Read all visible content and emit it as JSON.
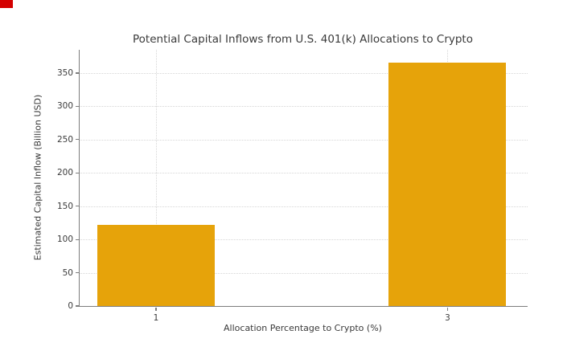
{
  "chart_data": {
    "type": "bar",
    "title": "Potential Capital Inflows from U.S. 401(k) Allocations to Crypto",
    "xlabel": "Allocation Percentage to Crypto (%)",
    "ylabel": "Estimated Capital Inflow (Billion USD)",
    "categories": [
      "1",
      "3"
    ],
    "values": [
      122,
      366
    ],
    "yticks": [
      0,
      50,
      100,
      150,
      200,
      250,
      300,
      350
    ],
    "ylim": [
      0,
      385
    ],
    "grid": "dotted-horizontal-and-vertical",
    "legend": "none",
    "bar_color": "#e6a30a"
  },
  "colors": {
    "background": "#ffffff",
    "bar": "#e6a30a",
    "text": "#3a3a3a",
    "spine": "#7d7d7d",
    "grid": "#d6d6d6",
    "corner_marker": "#d40000"
  }
}
